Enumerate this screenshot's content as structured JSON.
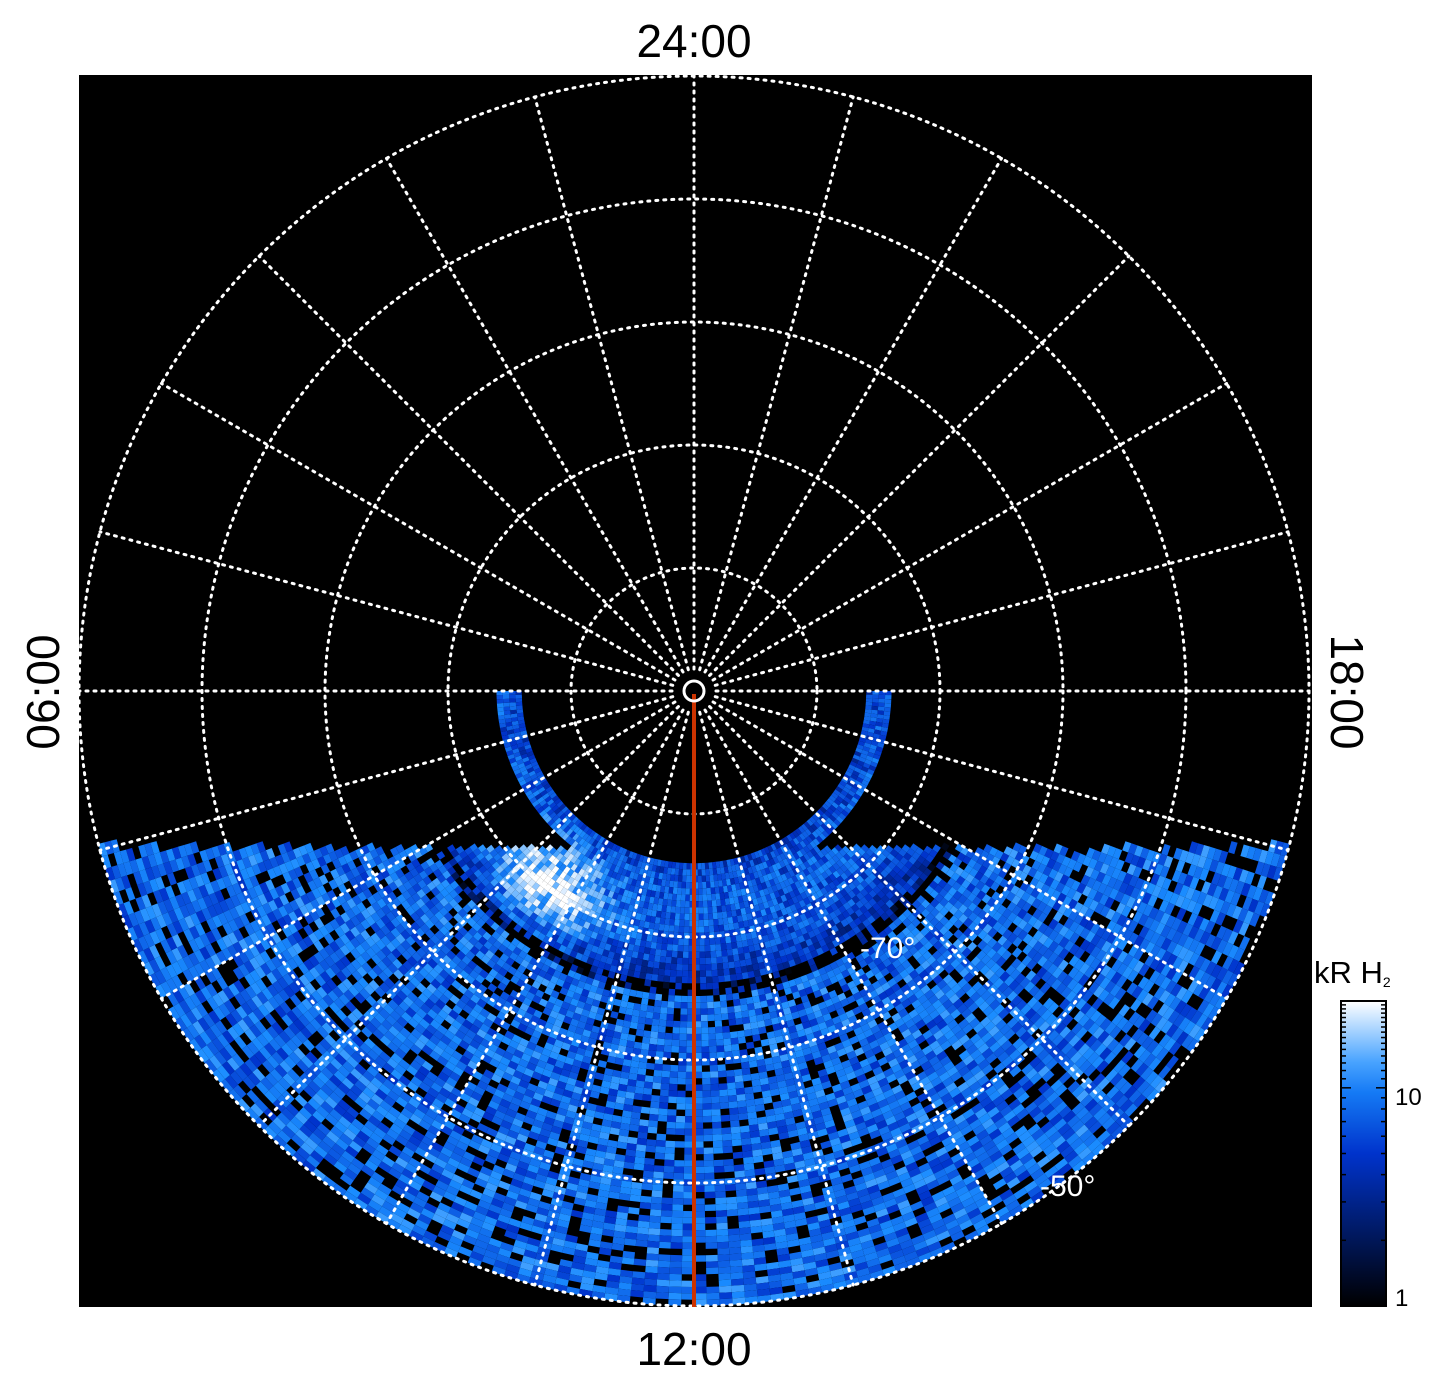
{
  "chart_data": {
    "type": "heatmap",
    "projection": "polar",
    "title": "",
    "local_time_labels": {
      "top": "24:00",
      "bottom": "12:00",
      "left": "06:00",
      "right": "18:00"
    },
    "latitude_labels": [
      "-70°",
      "-50°"
    ],
    "latitude_circles": [
      -80,
      -70,
      -60,
      -50,
      -40
    ],
    "meridian_spacing_hours": 1,
    "meridian_highlight_lt": "12:00",
    "colorbar": {
      "title": "kR H",
      "title_subscript": "2",
      "scale": "log",
      "range": [
        1,
        25
      ],
      "tick_labels": [
        "1",
        "10"
      ],
      "colormap": [
        "#000000",
        "#001a66",
        "#0033cc",
        "#1a8cff",
        "#ffffff"
      ]
    },
    "observed_region": "dayside sector (approx. 06:00–18:00 LT, latitude from about -40° to -77°)",
    "emission_band": {
      "latitude_range": [
        -77,
        -66
      ],
      "typical_kR": 8,
      "peak_kR": 25,
      "peak_lt": "09:30"
    },
    "colors": {
      "background": "#000000",
      "grid": "#ffffff",
      "meridian": "#cc3300"
    }
  }
}
